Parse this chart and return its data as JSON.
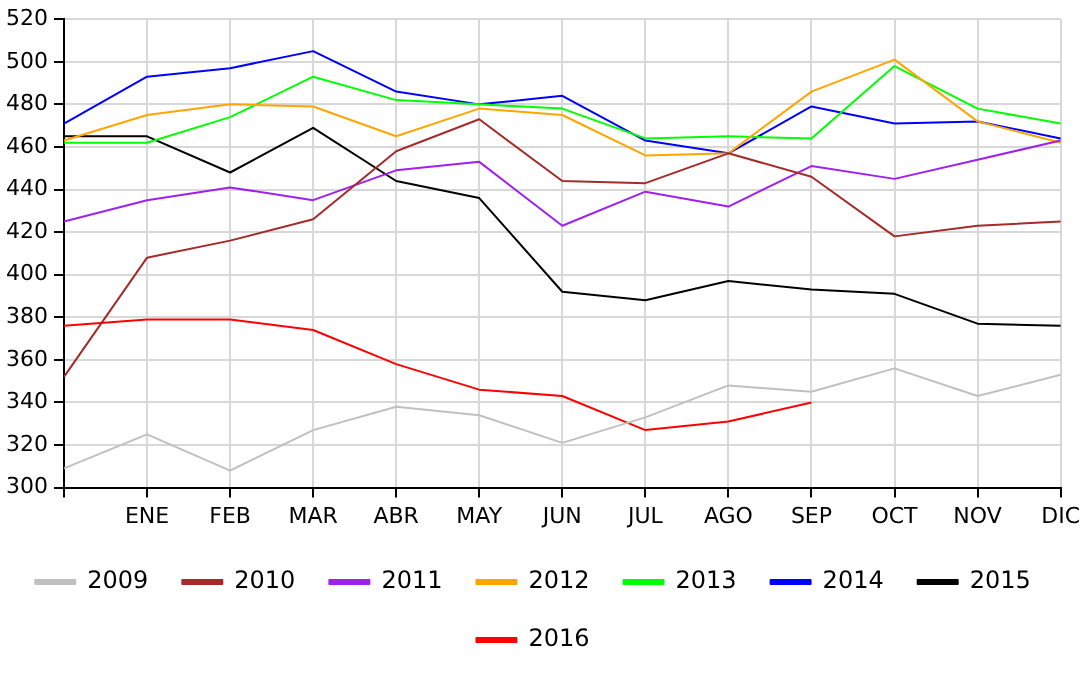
{
  "chart_data": {
    "type": "line",
    "categories": [
      null,
      "ENE",
      "FEB",
      "MAR",
      "ABR",
      "MAY",
      "JUN",
      "JUL",
      "AGO",
      "SEP",
      "OCT",
      "NOV",
      "DIC"
    ],
    "series": [
      {
        "name": "2009",
        "color": "#c0c0c0",
        "values": [
          309,
          325,
          308,
          327,
          338,
          334,
          321,
          333,
          348,
          345,
          356,
          343,
          353
        ]
      },
      {
        "name": "2010",
        "color": "#a52a2a",
        "values": [
          352,
          408,
          416,
          426,
          458,
          473,
          444,
          443,
          457,
          446,
          418,
          423,
          425
        ]
      },
      {
        "name": "2011",
        "color": "#a020f0",
        "values": [
          425,
          435,
          441,
          435,
          449,
          453,
          423,
          439,
          432,
          451,
          445,
          454,
          463
        ]
      },
      {
        "name": "2012",
        "color": "#ffa500",
        "values": [
          463,
          475,
          480,
          479,
          465,
          478,
          475,
          456,
          457,
          486,
          501,
          472,
          462
        ]
      },
      {
        "name": "2013",
        "color": "#00ff00",
        "values": [
          462,
          462,
          474,
          493,
          482,
          480,
          478,
          464,
          465,
          464,
          498,
          478,
          471
        ]
      },
      {
        "name": "2014",
        "color": "#0000ff",
        "values": [
          471,
          493,
          497,
          505,
          486,
          480,
          484,
          463,
          457,
          479,
          471,
          472,
          464
        ]
      },
      {
        "name": "2015",
        "color": "#000000",
        "values": [
          465,
          465,
          448,
          469,
          444,
          436,
          392,
          388,
          397,
          393,
          391,
          377,
          376
        ]
      },
      {
        "name": "2016",
        "color": "#ff0000",
        "values": [
          376,
          379,
          379,
          374,
          358,
          346,
          343,
          327,
          331,
          340,
          null,
          null,
          null
        ]
      }
    ],
    "ylim": [
      300,
      520
    ],
    "yticks": [
      300,
      320,
      340,
      360,
      380,
      400,
      420,
      440,
      460,
      480,
      500,
      520
    ],
    "grid": true,
    "legend": "bottom",
    "marker": "none",
    "line_style": "solid"
  }
}
